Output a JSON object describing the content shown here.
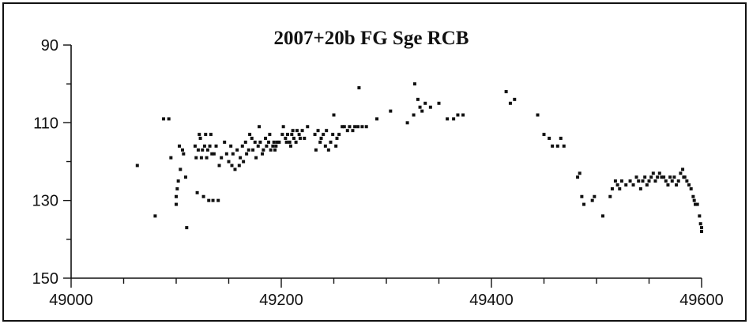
{
  "chart_data": {
    "type": "scatter",
    "title": "2007+20b    FG  Sge  RCB",
    "xlabel": "",
    "ylabel": "",
    "xlim": [
      49000,
      49600
    ],
    "ylim": [
      150,
      90
    ],
    "y_inverted": true,
    "grid": false,
    "x_ticks": [
      49000,
      49200,
      49400,
      49600
    ],
    "x_minor_ticks": [
      49050,
      49100,
      49150,
      49250,
      49300,
      49350,
      49450,
      49500,
      49550
    ],
    "y_ticks": [
      90,
      110,
      130,
      150
    ],
    "y_minor_ticks": [
      100,
      120,
      140
    ],
    "series": [
      {
        "values": [
          [
            49063,
            121
          ],
          [
            49080,
            134
          ],
          [
            49088,
            109
          ],
          [
            49093,
            109
          ],
          [
            49095,
            119
          ],
          [
            49100,
            129
          ],
          [
            49100,
            131
          ],
          [
            49101,
            127
          ],
          [
            49102,
            125
          ],
          [
            49103,
            116
          ],
          [
            49104,
            122
          ],
          [
            49106,
            117
          ],
          [
            49107,
            118
          ],
          [
            49109,
            124
          ],
          [
            49110,
            137
          ],
          [
            49118,
            116
          ],
          [
            49119,
            119
          ],
          [
            49120,
            128
          ],
          [
            49121,
            117
          ],
          [
            49122,
            113
          ],
          [
            49123,
            114
          ],
          [
            49124,
            119
          ],
          [
            49125,
            117
          ],
          [
            49126,
            129
          ],
          [
            49127,
            116
          ],
          [
            49128,
            113
          ],
          [
            49129,
            119
          ],
          [
            49130,
            117
          ],
          [
            49131,
            130
          ],
          [
            49132,
            116
          ],
          [
            49133,
            113
          ],
          [
            49134,
            118
          ],
          [
            49135,
            130
          ],
          [
            49136,
            118
          ],
          [
            49138,
            116
          ],
          [
            49140,
            130
          ],
          [
            49141,
            121
          ],
          [
            49143,
            119
          ],
          [
            49146,
            115
          ],
          [
            49148,
            118
          ],
          [
            49150,
            120
          ],
          [
            49152,
            116
          ],
          [
            49153,
            121
          ],
          [
            49154,
            118
          ],
          [
            49156,
            122
          ],
          [
            49158,
            117
          ],
          [
            49160,
            121
          ],
          [
            49161,
            119
          ],
          [
            49163,
            116
          ],
          [
            49164,
            120
          ],
          [
            49166,
            115
          ],
          [
            49167,
            118
          ],
          [
            49169,
            117
          ],
          [
            49170,
            113
          ],
          [
            49172,
            114
          ],
          [
            49173,
            117
          ],
          [
            49175,
            115
          ],
          [
            49176,
            119
          ],
          [
            49178,
            116
          ],
          [
            49179,
            111
          ],
          [
            49180,
            115
          ],
          [
            49182,
            118
          ],
          [
            49183,
            117
          ],
          [
            49185,
            114
          ],
          [
            49186,
            116
          ],
          [
            49188,
            115
          ],
          [
            49189,
            113
          ],
          [
            49190,
            117
          ],
          [
            49192,
            116
          ],
          [
            49193,
            115
          ],
          [
            49194,
            117
          ],
          [
            49195,
            116
          ],
          [
            49196,
            115
          ],
          [
            49198,
            115
          ],
          [
            49201,
            113
          ],
          [
            49202,
            111
          ],
          [
            49204,
            114
          ],
          [
            49205,
            115
          ],
          [
            49206,
            113
          ],
          [
            49208,
            115
          ],
          [
            49209,
            116
          ],
          [
            49210,
            113
          ],
          [
            49211,
            112
          ],
          [
            49212,
            114
          ],
          [
            49214,
            115
          ],
          [
            49215,
            112
          ],
          [
            49217,
            113
          ],
          [
            49218,
            114
          ],
          [
            49220,
            112
          ],
          [
            49222,
            114
          ],
          [
            49225,
            111
          ],
          [
            49232,
            113
          ],
          [
            49233,
            117
          ],
          [
            49235,
            112
          ],
          [
            49237,
            115
          ],
          [
            49238,
            114
          ],
          [
            49240,
            113
          ],
          [
            49242,
            116
          ],
          [
            49243,
            112
          ],
          [
            49245,
            117
          ],
          [
            49247,
            115
          ],
          [
            49249,
            113
          ],
          [
            49250,
            108
          ],
          [
            49252,
            116
          ],
          [
            49253,
            114
          ],
          [
            49255,
            113
          ],
          [
            49258,
            111
          ],
          [
            49260,
            111
          ],
          [
            49263,
            112
          ],
          [
            49265,
            111
          ],
          [
            49268,
            112
          ],
          [
            49270,
            111
          ],
          [
            49273,
            111
          ],
          [
            49274,
            101
          ],
          [
            49277,
            111
          ],
          [
            49281,
            111
          ],
          [
            49291,
            109
          ],
          [
            49304,
            107
          ],
          [
            49320,
            110
          ],
          [
            49326,
            108
          ],
          [
            49327,
            100
          ],
          [
            49330,
            104
          ],
          [
            49332,
            106
          ],
          [
            49334,
            107
          ],
          [
            49337,
            105
          ],
          [
            49342,
            106
          ],
          [
            49350,
            105
          ],
          [
            49358,
            109
          ],
          [
            49364,
            109
          ],
          [
            49368,
            108
          ],
          [
            49373,
            108
          ],
          [
            49414,
            102
          ],
          [
            49418,
            105
          ],
          [
            49422,
            104
          ],
          [
            49444,
            108
          ],
          [
            49450,
            113
          ],
          [
            49455,
            114
          ],
          [
            49458,
            116
          ],
          [
            49463,
            116
          ],
          [
            49466,
            114
          ],
          [
            49469,
            116
          ],
          [
            49482,
            124
          ],
          [
            49484,
            123
          ],
          [
            49486,
            129
          ],
          [
            49488,
            131
          ],
          [
            49496,
            130
          ],
          [
            49498,
            129
          ],
          [
            49506,
            134
          ],
          [
            49513,
            129
          ],
          [
            49515,
            127
          ],
          [
            49518,
            125
          ],
          [
            49520,
            126
          ],
          [
            49522,
            127
          ],
          [
            49524,
            125
          ],
          [
            49528,
            126
          ],
          [
            49532,
            125
          ],
          [
            49535,
            126
          ],
          [
            49538,
            124
          ],
          [
            49540,
            125
          ],
          [
            49542,
            127
          ],
          [
            49544,
            125
          ],
          [
            49546,
            124
          ],
          [
            49548,
            126
          ],
          [
            49550,
            125
          ],
          [
            49552,
            124
          ],
          [
            49554,
            123
          ],
          [
            49556,
            125
          ],
          [
            49558,
            124
          ],
          [
            49560,
            123
          ],
          [
            49562,
            124
          ],
          [
            49564,
            124
          ],
          [
            49566,
            125
          ],
          [
            49568,
            126
          ],
          [
            49570,
            124
          ],
          [
            49572,
            125
          ],
          [
            49574,
            124
          ],
          [
            49576,
            126
          ],
          [
            49578,
            125
          ],
          [
            49580,
            123
          ],
          [
            49582,
            122
          ],
          [
            49583,
            124
          ],
          [
            49584,
            124
          ],
          [
            49586,
            125
          ],
          [
            49588,
            126
          ],
          [
            49590,
            127
          ],
          [
            49592,
            129
          ],
          [
            49593,
            130
          ],
          [
            49594,
            131
          ],
          [
            49596,
            131
          ],
          [
            49598,
            134
          ],
          [
            49599,
            136
          ],
          [
            49600,
            137
          ],
          [
            49600,
            138
          ]
        ]
      }
    ]
  }
}
